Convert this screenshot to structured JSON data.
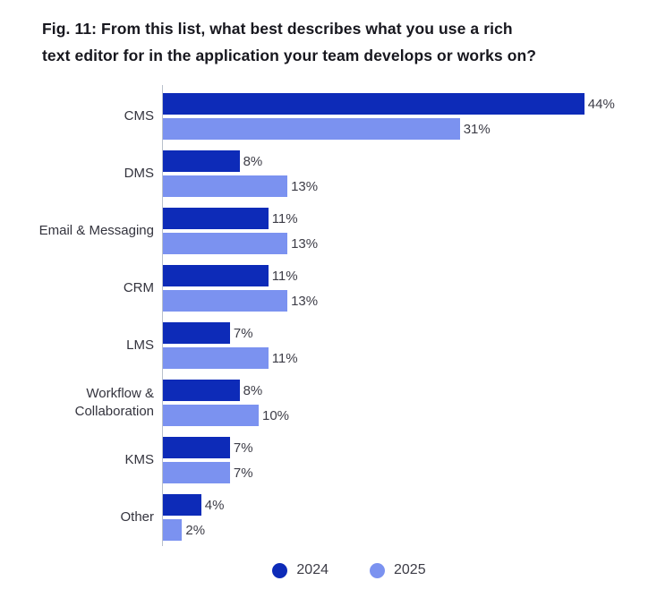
{
  "figure": {
    "title_line1": "Fig. 11: From this list, what best describes what you use a rich",
    "title_line2": "text editor for in the application your team develops or works on?"
  },
  "colors": {
    "series_2024": "#0d2bb8",
    "series_2025": "#7b92f0",
    "axis_line": "#b9c0cc",
    "title_text": "#17171e",
    "label_text": "#33333d"
  },
  "legend": {
    "items": [
      {
        "label": "2024",
        "color": "#0d2bb8"
      },
      {
        "label": "2025",
        "color": "#7b92f0"
      }
    ]
  },
  "chart_data": {
    "type": "bar",
    "orientation": "horizontal",
    "title": "Fig. 11: From this list, what best describes what you use a rich text editor for in the application your team develops or works on?",
    "categories": [
      "CMS",
      "DMS",
      "Email & Messaging",
      "CRM",
      "LMS",
      "Workflow & Collaboration",
      "KMS",
      "Other"
    ],
    "series": [
      {
        "name": "2024",
        "color": "#0d2bb8",
        "values": [
          44,
          8,
          11,
          11,
          7,
          8,
          7,
          4
        ]
      },
      {
        "name": "2025",
        "color": "#7b92f0",
        "values": [
          31,
          13,
          13,
          13,
          11,
          10,
          7,
          2
        ]
      }
    ],
    "unit": "%",
    "value_labels": true,
    "grid": false,
    "xlim": [
      0,
      44
    ],
    "legend_position": "bottom"
  }
}
